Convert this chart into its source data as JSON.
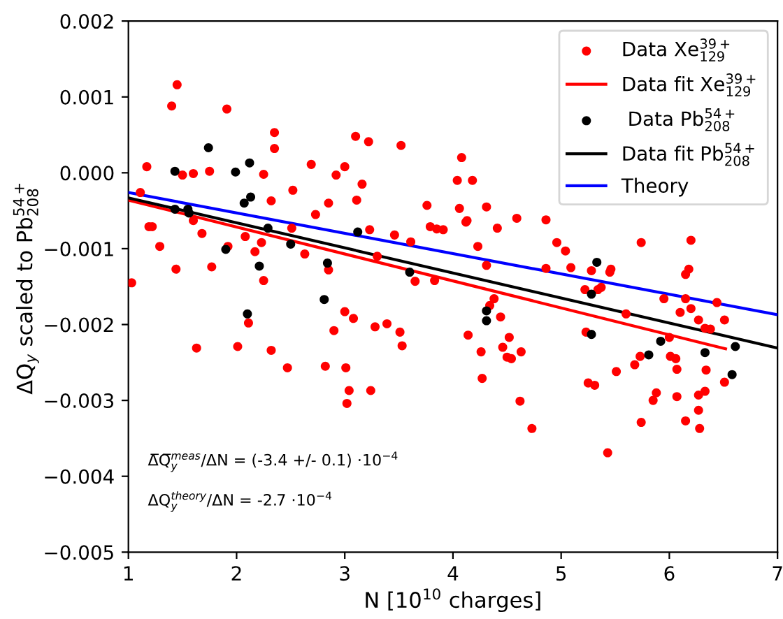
{
  "chart_data": {
    "type": "scatter",
    "xlabel": "N [10$^{10}$ charges]",
    "ylabel": "ΔQ$_{y}$ scaled to Pb$^{54+}$$_{208}$",
    "xlim": [
      1,
      7
    ],
    "xticks": [
      1,
      2,
      3,
      4,
      5,
      6,
      7
    ],
    "ylim": [
      -0.005,
      0.002
    ],
    "yticks": [
      {
        "value": -0.005,
        "label": "−0.005"
      },
      {
        "value": -0.004,
        "label": "−0.004"
      },
      {
        "value": -0.003,
        "label": "−0.003"
      },
      {
        "value": -0.002,
        "label": "−0.002"
      },
      {
        "value": -0.001,
        "label": "−0.001"
      },
      {
        "value": 0,
        "label": "0.000"
      },
      {
        "value": 0.001,
        "label": "0.001"
      },
      {
        "value": 0.002,
        "label": "0.002"
      }
    ],
    "grid": false,
    "legend": "top right",
    "marker": "circle",
    "annotations": [
      "Δ̅Q̅$^{meas}$$_{y}$/ΔN = (-3.4 +/- 0.1) ·10$^{−4}$",
      "ΔQ$^{theory}$$_{y}$/ΔN = -2.7 ·10$^{−4}$"
    ],
    "series": [
      {
        "name": "Data Xe$^{39+}$$_{129}$",
        "color": "#ff0000",
        "x": [
          1.03,
          1.11,
          1.17,
          1.19,
          1.22,
          1.29,
          1.4,
          1.45,
          1.44,
          1.5,
          1.6,
          1.6,
          1.68,
          1.75,
          1.77,
          1.91,
          1.92,
          2.08,
          2.17,
          2.23,
          2.25,
          2.25,
          2.32,
          2.35,
          2.35,
          2.51,
          2.52,
          2.63,
          2.69,
          2.73,
          2.85,
          2.85,
          2.92,
          3.0,
          3.1,
          3.11,
          3.16,
          3.22,
          3.23,
          3.3,
          3.46,
          3.52,
          3.61,
          3.65,
          3.76,
          3.79,
          3.85,
          3.91,
          3.83,
          4.04,
          4.06,
          4.08,
          4.18,
          4.12,
          4.13,
          4.23,
          4.31,
          4.31,
          4.38,
          4.41,
          4.59,
          4.86,
          4.86,
          4.96,
          5.04,
          5.09,
          5.22,
          5.28,
          5.34,
          5.37,
          5.45,
          5.46,
          5.74,
          6.15,
          6.18,
          6.2,
          6.44,
          4.34,
          4.44,
          4.14,
          4.26,
          4.27,
          4.52,
          4.46,
          4.5,
          4.54,
          4.63,
          4.62,
          4.73,
          5.23,
          5.25,
          5.31,
          5.51,
          5.6,
          5.43,
          5.68,
          5.73,
          5.74,
          5.85,
          5.88,
          5.95,
          6.0,
          6.01,
          6.06,
          6.07,
          6.07,
          6.1,
          6.15,
          6.15,
          6.2,
          6.27,
          6.33,
          6.38,
          6.34,
          6.27,
          6.33,
          6.27,
          6.28,
          6.51,
          6.51,
          2.11,
          1.63,
          2.01,
          2.32,
          2.47,
          2.82,
          2.9,
          3.0,
          3.08,
          3.01,
          3.04,
          3.02,
          3.24,
          3.28,
          3.39,
          3.51,
          3.53
        ],
        "values": [
          -0.00145,
          -0.00026,
          8e-05,
          -0.00071,
          -0.00071,
          -0.00097,
          0.00088,
          0.00116,
          -0.00127,
          -3e-05,
          -1e-05,
          -0.00063,
          -0.0008,
          2e-05,
          -0.00124,
          0.00084,
          -0.00097,
          -0.00084,
          -0.00104,
          -0.00092,
          -2e-05,
          -0.00142,
          -0.00037,
          0.00053,
          0.00032,
          -0.00073,
          -0.00023,
          -0.00107,
          0.00011,
          -0.00055,
          -0.0004,
          -0.00128,
          -3e-05,
          8e-05,
          0.00048,
          -0.00036,
          -0.00015,
          0.00041,
          -0.00075,
          -0.0011,
          -0.00082,
          0.00036,
          -0.00091,
          -0.00143,
          -0.00043,
          -0.00071,
          -0.00074,
          -0.00075,
          -0.00142,
          -0.0001,
          -0.00047,
          0.0002,
          -0.0001,
          -0.00065,
          -0.00063,
          -0.00097,
          -0.00045,
          -0.00122,
          -0.00166,
          -0.00073,
          -0.0006,
          -0.00062,
          -0.00126,
          -0.00092,
          -0.00103,
          -0.00125,
          -0.00154,
          -0.00129,
          -0.00154,
          -0.00151,
          -0.00131,
          -0.00127,
          -0.00092,
          -0.00134,
          -0.00127,
          -0.00089,
          -0.00171,
          -0.00175,
          -0.0019,
          -0.00214,
          -0.00236,
          -0.00271,
          -0.00217,
          -0.0023,
          -0.00243,
          -0.00245,
          -0.00236,
          -0.00301,
          -0.00337,
          -0.0021,
          -0.00277,
          -0.0028,
          -0.00262,
          -0.00186,
          -0.00369,
          -0.00253,
          -0.00242,
          -0.00329,
          -0.003,
          -0.0029,
          -0.00166,
          -0.00217,
          -0.00242,
          -0.00245,
          -0.00259,
          -0.00295,
          -0.00184,
          -0.00166,
          -0.00327,
          -0.00179,
          -0.00194,
          -0.00205,
          -0.00206,
          -0.0026,
          -0.00293,
          -0.00288,
          -0.00313,
          -0.00337,
          -0.00194,
          -0.00276,
          -0.00198,
          -0.00231,
          -0.00229,
          -0.00234,
          -0.00257,
          -0.00255,
          -0.00208,
          -0.00183,
          -0.00192,
          -0.00257,
          -0.00287,
          -0.00304,
          -0.00287,
          -0.00203,
          -0.00199,
          -0.0021,
          -0.00228
        ]
      },
      {
        "name": "Data fit Xe$^{39+}$$_{129}$",
        "type": "line",
        "color": "#ff0000",
        "marker": "none",
        "x": [
          1,
          6.52
        ],
        "values": [
          -0.00036,
          -0.00232
        ]
      },
      {
        "name": " Data Pb$^{54+}$$_{208}$",
        "color": "#000000",
        "x": [
          1.43,
          1.43,
          1.55,
          1.56,
          1.74,
          1.9,
          1.99,
          2.07,
          2.12,
          2.13,
          2.21,
          2.29,
          2.5,
          2.81,
          2.84,
          3.12,
          3.6,
          2.1,
          5.33,
          5.28,
          4.31,
          4.31,
          5.28,
          5.81,
          5.92,
          6.33,
          6.61,
          6.58
        ],
        "values": [
          2e-05,
          -0.00048,
          -0.00048,
          -0.00053,
          0.00033,
          -0.00101,
          1e-05,
          -0.0004,
          0.00013,
          -0.00032,
          -0.00123,
          -0.00073,
          -0.00094,
          -0.00167,
          -0.00119,
          -0.00078,
          -0.00131,
          -0.00186,
          -0.00118,
          -0.0016,
          -0.00182,
          -0.00195,
          -0.00213,
          -0.0024,
          -0.00222,
          -0.00237,
          -0.00229,
          -0.00266
        ]
      },
      {
        "name": "Data fit Pb$^{54+}$$_{208}$",
        "type": "line",
        "color": "#000000",
        "marker": "none",
        "x": [
          1,
          7
        ],
        "values": [
          -0.00033,
          -0.00231
        ]
      },
      {
        "name": "Theory",
        "type": "line",
        "color": "#0000ff",
        "marker": "none",
        "x": [
          1,
          7
        ],
        "values": [
          -0.00026,
          -0.00187
        ]
      }
    ]
  }
}
